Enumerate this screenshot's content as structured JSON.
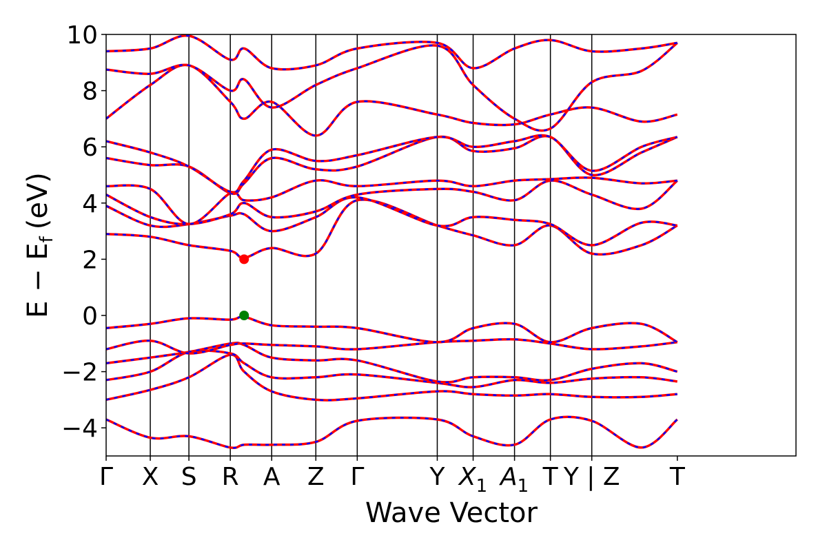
{
  "chart_data": {
    "type": "line",
    "title": "",
    "xlabel": "Wave Vector",
    "ylabel": "E − E",
    "ylabel_subscript": "f",
    "ylabel_unit": "(eV)",
    "ylim": [
      -5,
      10
    ],
    "yticks": [
      -4,
      -2,
      0,
      2,
      4,
      6,
      8,
      10
    ],
    "ytick_labels": [
      "−4",
      "−2",
      "0",
      "2",
      "4",
      "6",
      "8",
      "10"
    ],
    "xlim": [
      0,
      12.5
    ],
    "kpoints": [
      {
        "label": "Γ",
        "sub": "",
        "x": 0.0,
        "line": false
      },
      {
        "label": "X",
        "sub": "",
        "x": 0.8,
        "line": true
      },
      {
        "label": "S",
        "sub": "",
        "x": 1.5,
        "line": true
      },
      {
        "label": "R",
        "sub": "",
        "x": 2.25,
        "line": true
      },
      {
        "label": "A",
        "sub": "",
        "x": 3.0,
        "line": true
      },
      {
        "label": "Z",
        "sub": "",
        "x": 3.8,
        "line": true
      },
      {
        "label": "Γ",
        "sub": "",
        "x": 4.55,
        "line": true
      },
      {
        "label": "Y",
        "sub": "",
        "x": 6.0,
        "line": true
      },
      {
        "label": "X",
        "sub": "1",
        "x": 6.65,
        "line": true
      },
      {
        "label": "A",
        "sub": "1",
        "x": 7.4,
        "line": true
      },
      {
        "label": "T",
        "sub": "",
        "x": 8.05,
        "line": true
      },
      {
        "label": "Y | Z",
        "sub": "",
        "x": 8.8,
        "line": true
      },
      {
        "label": "T",
        "sub": "",
        "x": 10.35,
        "line": false
      }
    ],
    "colors": {
      "dft_bands": "#ff0000",
      "interp_bands": "#0000ff",
      "cbm": "#ff0000",
      "vbm": "#008000"
    },
    "special_points": [
      {
        "name": "CBM",
        "x": 2.5,
        "y": 2.0,
        "color": "#ff0000"
      },
      {
        "name": "VBM",
        "x": 2.5,
        "y": 0.0,
        "color": "#008000"
      }
    ],
    "bands": [
      {
        "x": [
          0,
          0.8,
          1.5,
          2.25,
          2.5,
          3.0,
          3.8,
          4.55,
          6.0,
          6.65,
          7.4,
          8.05,
          8.8,
          9.7,
          10.35
        ],
        "y": [
          -3.7,
          -4.35,
          -4.3,
          -4.7,
          -4.6,
          -4.6,
          -4.5,
          -3.75,
          -3.7,
          -4.3,
          -4.6,
          -3.7,
          -3.75,
          -4.7,
          -3.7
        ]
      },
      {
        "x": [
          0,
          0.8,
          1.5,
          2.25,
          2.5,
          3.0,
          3.8,
          4.55,
          6.0,
          6.65,
          7.4,
          8.05,
          8.8,
          9.7,
          10.35
        ],
        "y": [
          -3.0,
          -2.65,
          -2.2,
          -1.4,
          -2.0,
          -2.7,
          -3.0,
          -2.95,
          -2.7,
          -2.8,
          -2.85,
          -2.8,
          -2.9,
          -2.9,
          -2.8
        ]
      },
      {
        "x": [
          0,
          0.8,
          1.5,
          2.25,
          2.5,
          3.0,
          3.8,
          4.55,
          6.0,
          6.65,
          7.4,
          8.05,
          8.8,
          9.7,
          10.35
        ],
        "y": [
          -2.3,
          -2.0,
          -1.3,
          -1.35,
          -1.7,
          -2.2,
          -2.2,
          -2.1,
          -2.4,
          -2.55,
          -2.3,
          -2.4,
          -2.25,
          -2.2,
          -2.35
        ]
      },
      {
        "x": [
          0,
          0.8,
          1.5,
          2.25,
          2.5,
          3.0,
          3.8,
          4.55,
          6.0,
          6.65,
          7.4,
          8.05,
          8.8,
          9.7,
          10.35
        ],
        "y": [
          -1.7,
          -1.5,
          -1.3,
          -1.0,
          -1.05,
          -1.5,
          -1.6,
          -1.6,
          -2.35,
          -2.2,
          -2.2,
          -2.3,
          -1.9,
          -1.7,
          -2.0
        ]
      },
      {
        "x": [
          0,
          0.8,
          1.5,
          2.25,
          2.5,
          3.0,
          3.8,
          4.55,
          6.0,
          6.65,
          7.4,
          8.05,
          8.8,
          9.7,
          10.35
        ],
        "y": [
          -1.2,
          -0.9,
          -1.35,
          -1.05,
          -1.0,
          -1.05,
          -1.1,
          -1.2,
          -0.95,
          -0.9,
          -0.85,
          -1.0,
          -1.2,
          -1.1,
          -0.95
        ]
      },
      {
        "x": [
          0,
          0.8,
          1.5,
          2.25,
          2.5,
          3.0,
          3.8,
          4.55,
          6.0,
          6.65,
          7.4,
          8.05,
          8.8,
          9.7,
          10.35
        ],
        "y": [
          -0.45,
          -0.3,
          -0.1,
          -0.15,
          -0.05,
          -0.35,
          -0.4,
          -0.45,
          -0.95,
          -0.45,
          -0.3,
          -0.95,
          -0.45,
          -0.3,
          -0.95
        ]
      },
      {
        "x": [
          0,
          0.8,
          1.5,
          2.25,
          2.5,
          3.0,
          3.8,
          4.55,
          6.0,
          6.65,
          7.4,
          8.05,
          8.8,
          9.7,
          10.35
        ],
        "y": [
          2.9,
          2.8,
          2.5,
          2.3,
          2.05,
          2.4,
          2.2,
          4.1,
          3.2,
          2.85,
          2.5,
          3.2,
          2.2,
          2.5,
          3.2
        ]
      },
      {
        "x": [
          0,
          0.8,
          1.5,
          2.25,
          2.5,
          3.0,
          3.8,
          4.55,
          6.0,
          6.65,
          7.4,
          8.05,
          8.8,
          9.7,
          10.35
        ],
        "y": [
          3.9,
          3.2,
          3.25,
          3.55,
          3.6,
          3.0,
          3.5,
          4.2,
          3.2,
          3.5,
          3.4,
          3.25,
          2.5,
          3.3,
          3.2
        ]
      },
      {
        "x": [
          0,
          0.8,
          1.5,
          2.25,
          2.5,
          3.0,
          3.8,
          4.55,
          6.0,
          6.65,
          7.4,
          8.05,
          8.8,
          9.7,
          10.35
        ],
        "y": [
          4.3,
          3.5,
          3.25,
          3.6,
          4.0,
          3.5,
          3.7,
          4.3,
          4.5,
          4.4,
          4.1,
          4.8,
          4.3,
          3.8,
          4.8
        ]
      },
      {
        "x": [
          0,
          0.8,
          1.5,
          2.25,
          2.5,
          3.0,
          3.8,
          4.55,
          6.0,
          6.65,
          7.4,
          8.05,
          8.8,
          9.7,
          10.35
        ],
        "y": [
          4.6,
          4.5,
          3.25,
          4.35,
          4.1,
          4.2,
          4.8,
          4.6,
          4.8,
          4.6,
          4.8,
          4.85,
          4.9,
          4.7,
          4.8
        ]
      },
      {
        "x": [
          0,
          0.8,
          1.5,
          2.25,
          2.5,
          3.0,
          3.8,
          4.55,
          6.0,
          6.65,
          7.4,
          8.05,
          8.8,
          9.7,
          10.35
        ],
        "y": [
          5.6,
          5.35,
          5.3,
          4.35,
          4.7,
          5.6,
          5.2,
          5.3,
          6.35,
          5.85,
          5.95,
          6.35,
          5.0,
          5.8,
          6.35
        ]
      },
      {
        "x": [
          0,
          0.8,
          1.5,
          2.25,
          2.5,
          3.0,
          3.8,
          4.55,
          6.0,
          6.65,
          7.4,
          8.05,
          8.8,
          9.7,
          10.35
        ],
        "y": [
          6.2,
          5.8,
          5.3,
          4.4,
          4.8,
          5.9,
          5.5,
          5.7,
          6.35,
          6.0,
          6.2,
          6.35,
          5.15,
          6.0,
          6.35
        ]
      },
      {
        "x": [
          0,
          0.8,
          1.5,
          2.25,
          2.5,
          3.0,
          3.8,
          4.55,
          6.0,
          6.65,
          7.4,
          8.05,
          8.8,
          9.7,
          10.35
        ],
        "y": [
          7.0,
          8.2,
          8.9,
          7.6,
          7.0,
          7.6,
          6.4,
          7.6,
          7.15,
          6.85,
          6.8,
          7.15,
          7.4,
          6.9,
          7.15
        ]
      },
      {
        "x": [
          0,
          0.8,
          1.5,
          2.25,
          2.5,
          3.0,
          3.8,
          4.55,
          6.0,
          6.65,
          7.4,
          8.05,
          8.8,
          9.7,
          10.35
        ],
        "y": [
          8.75,
          8.6,
          8.9,
          8.0,
          8.4,
          7.4,
          8.2,
          8.8,
          9.6,
          8.2,
          7.0,
          6.65,
          8.3,
          8.7,
          9.7
        ]
      },
      {
        "x": [
          0,
          0.8,
          1.5,
          2.25,
          2.5,
          3.0,
          3.8,
          4.55,
          6.0,
          6.65,
          7.4,
          8.05,
          8.8,
          9.7,
          10.35
        ],
        "y": [
          9.4,
          9.5,
          9.95,
          9.1,
          9.5,
          8.8,
          8.9,
          9.5,
          9.7,
          8.8,
          9.5,
          9.8,
          9.4,
          9.5,
          9.7
        ]
      }
    ]
  }
}
